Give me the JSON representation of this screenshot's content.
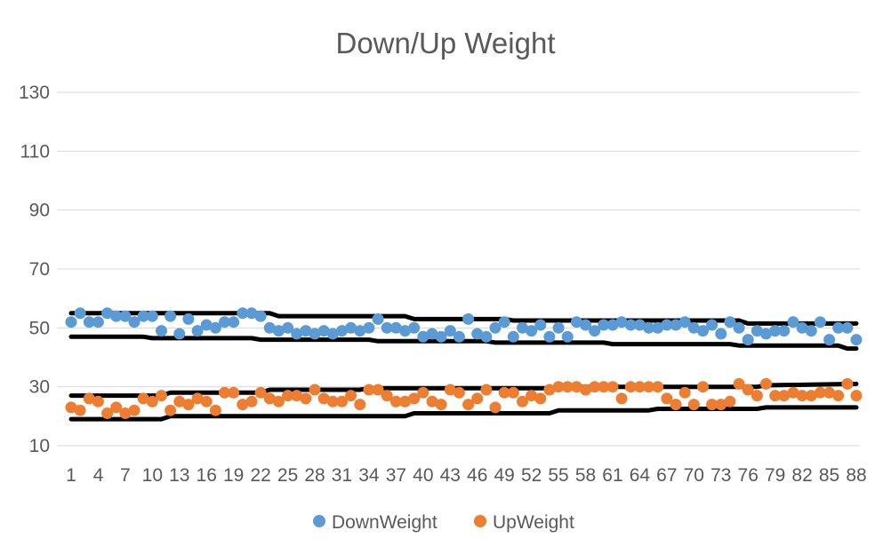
{
  "chart_data": {
    "type": "scatter",
    "title": "Down/Up Weight",
    "xlabel": "",
    "ylabel": "",
    "xlim": [
      1,
      88
    ],
    "ylim": [
      10,
      130
    ],
    "yticks": [
      10,
      30,
      50,
      70,
      90,
      110,
      130
    ],
    "xtick_labels": [
      "1",
      "4",
      "7",
      "10",
      "13",
      "16",
      "19",
      "22",
      "25",
      "28",
      "31",
      "34",
      "37",
      "40",
      "43",
      "46",
      "49",
      "52",
      "55",
      "58",
      "61",
      "64",
      "67",
      "70",
      "73",
      "76",
      "79",
      "82",
      "85",
      "88"
    ],
    "grid": true,
    "legend_position": "bottom",
    "series": [
      {
        "name": "DownWeight",
        "color": "#5b9bd5",
        "x": [
          1,
          2,
          3,
          4,
          5,
          6,
          7,
          8,
          9,
          10,
          11,
          12,
          13,
          14,
          15,
          16,
          17,
          18,
          19,
          20,
          21,
          22,
          23,
          24,
          25,
          26,
          27,
          28,
          29,
          30,
          31,
          32,
          33,
          34,
          35,
          36,
          37,
          38,
          39,
          40,
          41,
          42,
          43,
          44,
          45,
          46,
          47,
          48,
          49,
          50,
          51,
          52,
          53,
          54,
          55,
          56,
          57,
          58,
          59,
          60,
          61,
          62,
          63,
          64,
          65,
          66,
          67,
          68,
          69,
          70,
          71,
          72,
          73,
          74,
          75,
          76,
          77,
          78,
          79,
          80,
          81,
          82,
          83,
          84,
          85,
          86,
          87,
          88
        ],
        "y": [
          52,
          55,
          52,
          52,
          55,
          54,
          54,
          52,
          54,
          54,
          49,
          54,
          48,
          53,
          49,
          51,
          50,
          52,
          52,
          55,
          55,
          54,
          50,
          49,
          50,
          48,
          49,
          48,
          49,
          48,
          49,
          50,
          49,
          50,
          53,
          50,
          50,
          49,
          50,
          47,
          48,
          47,
          49,
          47,
          53,
          48,
          47,
          50,
          52,
          47,
          50,
          49,
          51,
          47,
          50,
          47,
          52,
          51,
          49,
          51,
          51,
          52,
          51,
          51,
          50,
          50,
          51,
          51,
          52,
          50,
          49,
          51,
          48,
          52,
          50,
          46,
          49,
          48,
          49,
          49,
          52,
          50,
          49,
          52,
          46,
          50,
          50,
          46
        ]
      },
      {
        "name": "UpWeight",
        "color": "#ed7d31",
        "x": [
          1,
          2,
          3,
          4,
          5,
          6,
          7,
          8,
          9,
          10,
          11,
          12,
          13,
          14,
          15,
          16,
          17,
          18,
          19,
          20,
          21,
          22,
          23,
          24,
          25,
          26,
          27,
          28,
          29,
          30,
          31,
          32,
          33,
          34,
          35,
          36,
          37,
          38,
          39,
          40,
          41,
          42,
          43,
          44,
          45,
          46,
          47,
          48,
          49,
          50,
          51,
          52,
          53,
          54,
          55,
          56,
          57,
          58,
          59,
          60,
          61,
          62,
          63,
          64,
          65,
          66,
          67,
          68,
          69,
          70,
          71,
          72,
          73,
          74,
          75,
          76,
          77,
          78,
          79,
          80,
          81,
          82,
          83,
          84,
          85,
          86,
          87,
          88
        ],
        "y": [
          23,
          22,
          26,
          25,
          21,
          23,
          21,
          22,
          26,
          25,
          27,
          22,
          25,
          24,
          26,
          25,
          22,
          28,
          28,
          24,
          25,
          28,
          26,
          25,
          27,
          27,
          26,
          29,
          26,
          25,
          25,
          27,
          24,
          29,
          29,
          27,
          25,
          25,
          26,
          28,
          25,
          24,
          29,
          28,
          24,
          26,
          29,
          23,
          28,
          28,
          25,
          27,
          26,
          29,
          30,
          30,
          30,
          29,
          30,
          30,
          30,
          26,
          30,
          30,
          30,
          30,
          26,
          24,
          28,
          24,
          30,
          24,
          24,
          25,
          31,
          29,
          27,
          31,
          27,
          27,
          28,
          27,
          27,
          28,
          28,
          27,
          31,
          27
        ]
      }
    ],
    "band_lines": [
      {
        "x": [
          1,
          11,
          12,
          22,
          23,
          33,
          34,
          44,
          45,
          56,
          57,
          66,
          67,
          77,
          78,
          88
        ],
        "y": [
          27,
          27,
          28,
          28,
          29,
          29,
          29.5,
          29.5,
          29.5,
          29.5,
          30,
          30,
          30,
          30,
          30.5,
          31
        ]
      },
      {
        "x": [
          1,
          11,
          12,
          22,
          23,
          38,
          39,
          44,
          45,
          54,
          55,
          65,
          66,
          77,
          78,
          88
        ],
        "y": [
          19,
          19,
          20,
          20,
          20,
          20,
          21,
          21,
          21,
          21,
          22,
          22,
          22.5,
          22.5,
          23,
          23
        ]
      },
      {
        "x": [
          1,
          23,
          24,
          38,
          39,
          49,
          50,
          75,
          76,
          88
        ],
        "y": [
          55,
          55,
          54,
          54,
          53,
          53,
          52.5,
          52.5,
          51.5,
          51.5
        ]
      },
      {
        "x": [
          1,
          9,
          10,
          21,
          22,
          34,
          35,
          47,
          48,
          60,
          61,
          74,
          75,
          86,
          87,
          88
        ],
        "y": [
          47,
          47,
          46.5,
          46.5,
          46,
          46,
          45.5,
          45.5,
          45,
          45,
          44.5,
          44.5,
          44,
          44,
          43,
          43
        ]
      }
    ]
  }
}
